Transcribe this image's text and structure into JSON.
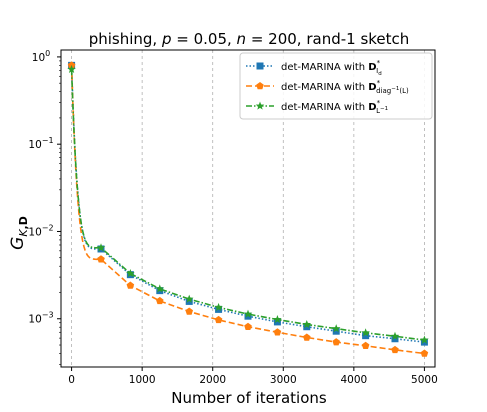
{
  "chart_data": {
    "type": "line",
    "title": "phishing, p = 0.05, n = 200, rand-1 sketch",
    "title_parts": {
      "dataset": "phishing, ",
      "p_symbol": "p",
      "p_value": " = 0.05, ",
      "n_symbol": "n",
      "n_value": " = 200, rand-1 sketch"
    },
    "xlabel": "Number of iterations",
    "ylabel": "G_{K,D}",
    "ylabel_parts": {
      "main": "G",
      "sub_italic": "K",
      "sub_bold": ",D"
    },
    "xlim": [
      -150,
      5150
    ],
    "ylim": [
      0.00028,
      1.2
    ],
    "y_scale": "log",
    "x_ticks": [
      0,
      1000,
      2000,
      3000,
      4000,
      5000
    ],
    "x_tick_labels": [
      "0",
      "1000",
      "2000",
      "3000",
      "4000",
      "5000"
    ],
    "y_ticks": [
      1,
      0.1,
      0.01,
      0.001
    ],
    "y_tick_labels": [
      "10^0",
      "10^-1",
      "10^-2",
      "10^-3"
    ],
    "grid": {
      "x": true,
      "y": false,
      "style": "dashed"
    },
    "legend_position": "upper right",
    "series": [
      {
        "name": "det-MARINA with D*_{I_d}",
        "legend": {
          "pre": "det-MARINA with ",
          "bold": "D",
          "sup": "*",
          "sub": "I",
          "subsub": "d"
        },
        "color": "#1f77b4",
        "linestyle": "dotted",
        "marker": "square",
        "x": [
          0,
          417,
          833,
          1250,
          1667,
          2083,
          2500,
          2917,
          3333,
          3750,
          4167,
          4583,
          5000
        ],
        "y": [
          0.8,
          0.0063,
          0.0032,
          0.0021,
          0.00158,
          0.00128,
          0.00107,
          0.00092,
          0.00081,
          0.00072,
          0.00064,
          0.00059,
          0.00054
        ]
      },
      {
        "name": "det-MARINA with D*_{diag^-1(L)}",
        "legend": {
          "pre": "det-MARINA with ",
          "bold": "D",
          "sup": "*",
          "sub": "diag",
          "subsup": "−1",
          "subpost": "(L)"
        },
        "color": "#ff7f0e",
        "linestyle": "dashed",
        "marker": "pentagon",
        "x": [
          0,
          417,
          833,
          1250,
          1667,
          2083,
          2500,
          2917,
          3333,
          3750,
          4167,
          4583,
          5000
        ],
        "y": [
          0.8,
          0.0048,
          0.0024,
          0.0016,
          0.00121,
          0.00097,
          0.00081,
          0.0007,
          0.00061,
          0.00054,
          0.00049,
          0.00044,
          0.0004
        ]
      },
      {
        "name": "det-MARINA with D*_{L^-1}",
        "legend": {
          "pre": "det-MARINA with ",
          "bold": "D",
          "sup": "*",
          "sub": "L",
          "subsup": "−1"
        },
        "color": "#2ca02c",
        "linestyle": "dashdot",
        "marker": "star",
        "x": [
          0,
          417,
          833,
          1250,
          1667,
          2083,
          2500,
          2917,
          3333,
          3750,
          4167,
          4583,
          5000
        ],
        "y": [
          0.72,
          0.0065,
          0.0033,
          0.0022,
          0.00168,
          0.00135,
          0.00113,
          0.00098,
          0.00086,
          0.00077,
          0.00069,
          0.00063,
          0.00057
        ]
      }
    ]
  }
}
